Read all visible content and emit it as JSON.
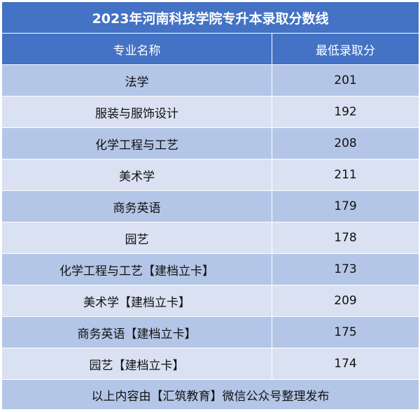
{
  "table": {
    "title": "2023年河南科技学院专升本录取分数线",
    "headers": {
      "major": "专业名称",
      "score": "最低录取分"
    },
    "rows": [
      {
        "major": "法学",
        "score": "201"
      },
      {
        "major": "服装与服饰设计",
        "score": "192"
      },
      {
        "major": "化学工程与工艺",
        "score": "208"
      },
      {
        "major": "美术学",
        "score": "211"
      },
      {
        "major": "商务英语",
        "score": "179"
      },
      {
        "major": "园艺",
        "score": "178"
      },
      {
        "major": "化学工程与工艺【建档立卡】",
        "score": "173"
      },
      {
        "major": "美术学【建档立卡】",
        "score": "209"
      },
      {
        "major": "商务英语【建档立卡】",
        "score": "175"
      },
      {
        "major": "园艺【建档立卡】",
        "score": "174"
      }
    ],
    "footer": "以上内容由【汇筑教育】微信公众号整理发布"
  },
  "colors": {
    "header_bg": "#4472c4",
    "row_dark": "#b4c6e7",
    "row_light": "#d9e1f2",
    "header_text": "#ffffff"
  }
}
